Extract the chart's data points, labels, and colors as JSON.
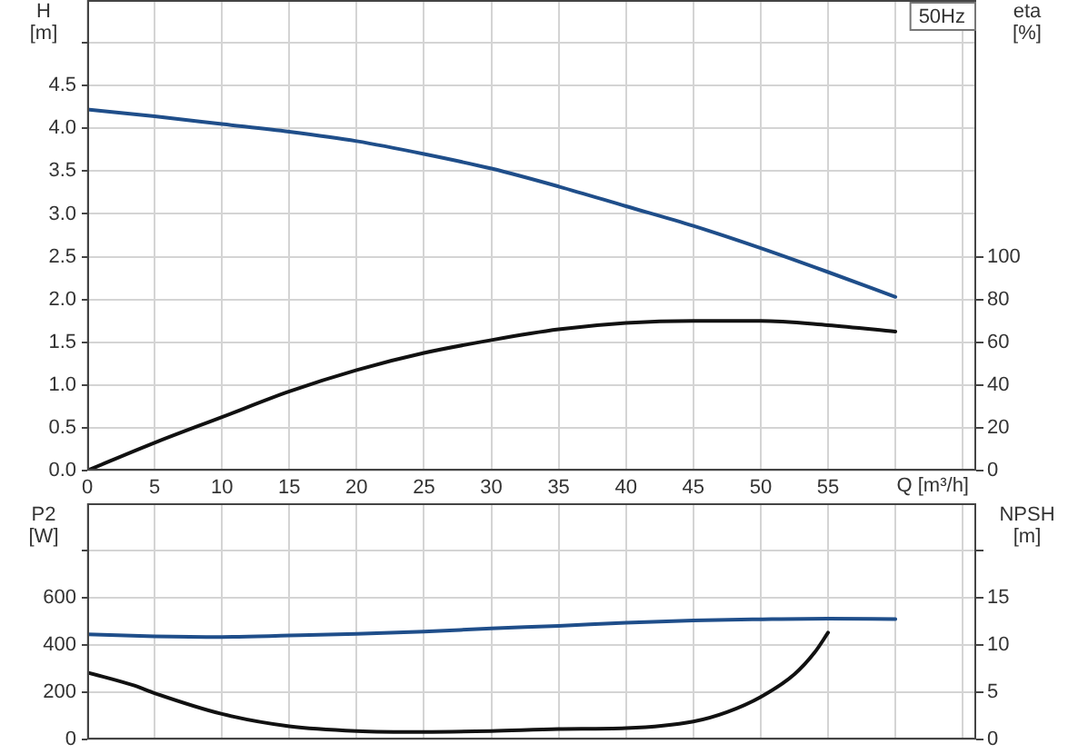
{
  "chart_data": [
    {
      "type": "line",
      "title": "50Hz",
      "xlabel": "Q [m³/h]",
      "ylabel": "H [m]",
      "y2label": "eta [%]",
      "xlim": [
        0,
        66
      ],
      "xticks": [
        0,
        5,
        10,
        15,
        20,
        25,
        30,
        35,
        40,
        45,
        50,
        55,
        {
          "value": 60,
          "label": null
        },
        {
          "value": 65,
          "label": null
        }
      ],
      "ylim": [
        0,
        5.5
      ],
      "yticks": [
        {
          "value": 0,
          "label": "0.0"
        },
        0.5,
        {
          "value": 1,
          "label": "1.0"
        },
        1.5,
        {
          "value": 2,
          "label": "2.0"
        },
        2.5,
        {
          "value": 3,
          "label": "3.0"
        },
        3.5,
        {
          "value": 4,
          "label": "4.0"
        },
        4.5,
        {
          "value": 5,
          "label": null
        }
      ],
      "y2lim": [
        0,
        220
      ],
      "y2ticks": [
        0,
        20,
        40,
        60,
        80,
        100
      ],
      "grid": true,
      "series": [
        {
          "color": "#1f4e8a",
          "x": [
            0,
            5,
            10,
            15,
            20,
            25,
            30,
            35,
            40,
            45,
            50,
            55,
            60
          ],
          "values": [
            4.22,
            4.14,
            4.05,
            3.96,
            3.85,
            3.7,
            3.53,
            3.32,
            3.09,
            2.86,
            2.6,
            2.32,
            2.03
          ]
        },
        {
          "color": "#111111",
          "axis": "y2",
          "x": [
            0,
            5,
            10,
            15,
            20,
            25,
            30,
            35,
            40,
            45,
            50,
            55,
            60
          ],
          "values": [
            0,
            13,
            25,
            37,
            47,
            55,
            61,
            66,
            69,
            70,
            70,
            68,
            65
          ]
        }
      ]
    },
    {
      "type": "line",
      "ylabel": "P2 [W]",
      "y2label": "NPSH [m]",
      "xlim": [
        0,
        66
      ],
      "xticks": [
        0,
        5,
        10,
        15,
        20,
        25,
        30,
        35,
        40,
        45,
        50,
        55,
        60,
        65
      ],
      "tick_labels": "y",
      "ylim": [
        0,
        1000
      ],
      "yticks": [
        0,
        200,
        400,
        600,
        {
          "value": 800,
          "label": null
        }
      ],
      "y2lim": [
        0,
        25
      ],
      "y2ticks": [
        0,
        5,
        10,
        15,
        {
          "value": 20,
          "label": null
        }
      ],
      "grid": true,
      "series": [
        {
          "color": "#1f4e8a",
          "x": [
            0,
            5,
            10,
            15,
            20,
            25,
            30,
            35,
            40,
            45,
            50,
            55,
            60
          ],
          "values": [
            445,
            437,
            434,
            440,
            447,
            457,
            470,
            481,
            494,
            504,
            509,
            512,
            510
          ]
        },
        {
          "color": "#111111",
          "axis": "y2",
          "x": [
            0,
            3.5,
            5,
            10,
            15,
            20,
            25,
            30,
            35,
            40,
            45,
            47.5,
            50,
            52.5,
            54,
            55
          ],
          "values": [
            7.1,
            5.7,
            4.9,
            2.7,
            1.4,
            0.9,
            0.8,
            0.9,
            1.1,
            1.2,
            1.9,
            2.9,
            4.5,
            6.9,
            9.2,
            11.3
          ]
        }
      ]
    }
  ]
}
